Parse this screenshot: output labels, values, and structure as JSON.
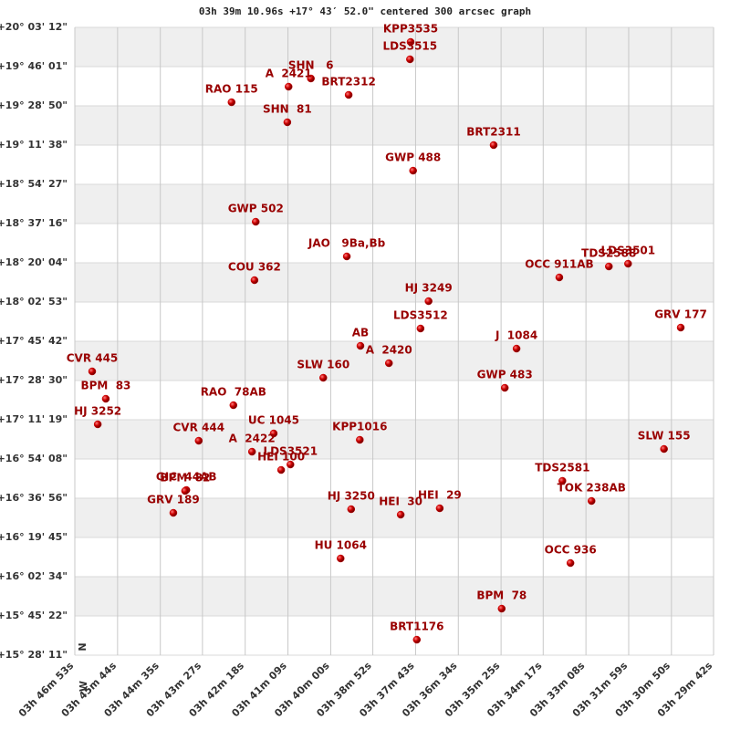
{
  "chart_data": {
    "type": "scatter",
    "title": "03h 39m 10.96s +17° 43′ 52.0\" centered 300 arcsec graph",
    "north_label": "N",
    "west_label": "W",
    "color": "#cc0000",
    "label_color": "#990000",
    "band_color": "#efefef",
    "grid": true,
    "xlim": [
      13613,
      12582
    ],
    "ylim": [
      55691,
      72192
    ],
    "xticks": [
      {
        "value": 13613,
        "label": "03h 46m 53s"
      },
      {
        "value": 13544,
        "label": "03h 45m 44s"
      },
      {
        "value": 13475,
        "label": "03h 44m 35s"
      },
      {
        "value": 13407,
        "label": "03h 43m 27s"
      },
      {
        "value": 13338,
        "label": "03h 42m 18s"
      },
      {
        "value": 13269,
        "label": "03h 41m 09s"
      },
      {
        "value": 13200,
        "label": "03h 40m 00s"
      },
      {
        "value": 13132,
        "label": "03h 38m 52s"
      },
      {
        "value": 13063,
        "label": "03h 37m 43s"
      },
      {
        "value": 12994,
        "label": "03h 36m 34s"
      },
      {
        "value": 12925,
        "label": "03h 35m 25s"
      },
      {
        "value": 12857,
        "label": "03h 34m 17s"
      },
      {
        "value": 12788,
        "label": "03h 33m 08s"
      },
      {
        "value": 12719,
        "label": "03h 31m 59s"
      },
      {
        "value": 12650,
        "label": "03h 30m 50s"
      },
      {
        "value": 12582,
        "label": "03h 29m 42s"
      }
    ],
    "yticks": [
      {
        "value": 72192,
        "label": "+20° 03' 12\""
      },
      {
        "value": 71161,
        "label": "+19° 46' 01\""
      },
      {
        "value": 70130,
        "label": "+19° 28' 50\""
      },
      {
        "value": 69098,
        "label": "+19° 11' 38\""
      },
      {
        "value": 68067,
        "label": "+18° 54' 27\""
      },
      {
        "value": 67036,
        "label": "+18° 37' 16\""
      },
      {
        "value": 66004,
        "label": "+18° 20' 04\""
      },
      {
        "value": 64973,
        "label": "+18° 02' 53\""
      },
      {
        "value": 63942,
        "label": "+17° 45' 42\""
      },
      {
        "value": 62910,
        "label": "+17° 28' 30\""
      },
      {
        "value": 61879,
        "label": "+17° 11' 19\""
      },
      {
        "value": 60848,
        "label": "+16° 54' 08\""
      },
      {
        "value": 59816,
        "label": "+16° 36' 56\""
      },
      {
        "value": 58785,
        "label": "+16° 19' 45\""
      },
      {
        "value": 57754,
        "label": "+16° 02' 34\""
      },
      {
        "value": 56722,
        "label": "+15° 45' 22\""
      },
      {
        "value": 55691,
        "label": "+15° 28' 11\""
      }
    ],
    "point_labels": [
      "KPP3535",
      "LDS3515",
      "SHN   6",
      "A  2421",
      "BRT2312",
      "RAO 115",
      "SHN  81",
      "BRT2311",
      "GWP 488",
      "GWP 502",
      "JAO   9Ba,Bb",
      "COU 362",
      "OCC 911AB",
      "TDS2588",
      "LDS3501",
      "HJ 3249",
      "LDS3512",
      "GRV 177",
      "AB",
      "J  1084",
      "A  2420",
      "CVR 445",
      "SLW 160",
      "GWP 483",
      "BPM  83",
      "RAO  78AB",
      "HJ 3252",
      "CVR 444",
      "UC 1045",
      "KPP1016",
      "SLW 155",
      "A  2422",
      "LDS3521",
      "HEI 100",
      "TDS2581",
      "GIC  44AB",
      "BPM  82",
      "TOK 238AB",
      "GRV 189",
      "HJ 3250",
      "HEI  30",
      "HEI  29",
      "HU 1064",
      "OCC 936",
      "BPM  78",
      "BRT1176"
    ],
    "x": [
      13071,
      13072,
      13232,
      13268,
      13171,
      13360,
      13270,
      12937,
      13067,
      13321,
      13174,
      13323,
      12831,
      12751,
      12720,
      13042,
      13055,
      12635,
      13152,
      12900,
      13106,
      13585,
      13212,
      12919,
      13563,
      13357,
      13576,
      13413,
      13292,
      13153,
      12662,
      13327,
      13265,
      13280,
      12826,
      13433,
      13435,
      12779,
      13454,
      13167,
      13087,
      13024,
      13184,
      12813,
      12924,
      13061
    ],
    "values": [
      71808,
      71353,
      70849,
      70633,
      70417,
      70225,
      69698,
      69098,
      68426,
      67083,
      66172,
      65548,
      65620,
      65908,
      65980,
      64996,
      64277,
      64301,
      63821,
      63749,
      63366,
      63150,
      62982,
      62718,
      62430,
      62262,
      61759,
      61327,
      61519,
      61351,
      61111,
      61039,
      60703,
      60559,
      60272,
      60032,
      60008,
      59744,
      59432,
      59528,
      59384,
      59552,
      58233,
      58113,
      56914,
      56098
    ]
  }
}
